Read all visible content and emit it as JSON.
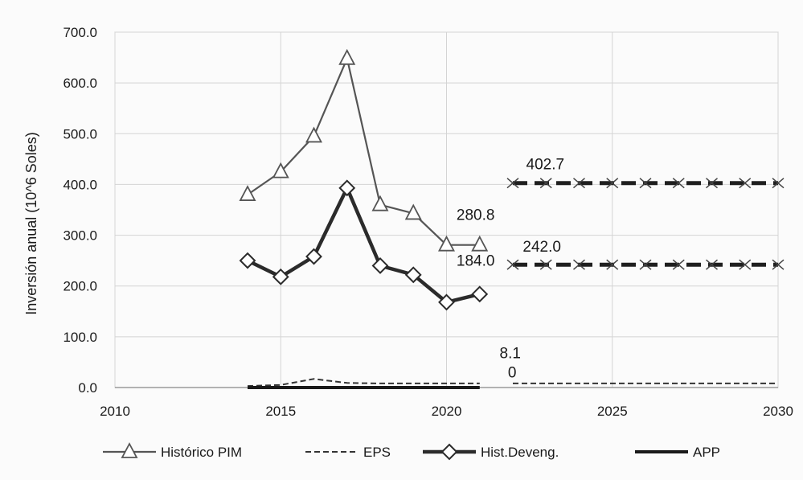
{
  "chart_data": {
    "type": "line",
    "title": "",
    "xlabel": "",
    "ylabel": "Inversión anual (10^6 Soles)",
    "xlim": [
      2010,
      2030
    ],
    "ylim": [
      0,
      700
    ],
    "x_ticks": [
      "2010",
      "2015",
      "2020",
      "2025",
      "2030"
    ],
    "y_ticks": [
      "0.0",
      "100.0",
      "200.0",
      "300.0",
      "400.0",
      "500.0",
      "600.0",
      "700.0"
    ],
    "grid": true,
    "legend_position": "bottom",
    "series": [
      {
        "name": "Histórico PIM",
        "style": "solid-triangle",
        "color": "#555555",
        "x": [
          2014,
          2015,
          2016,
          2017,
          2018,
          2019,
          2020,
          2021
        ],
        "y": [
          380,
          425,
          495,
          648,
          360,
          343,
          280.8,
          280.8
        ]
      },
      {
        "name": "EPS",
        "style": "dashed",
        "color": "#333333",
        "x": [
          2014,
          2015,
          2016,
          2017,
          2018,
          2019,
          2020,
          2021
        ],
        "y": [
          3,
          5,
          17,
          9,
          8,
          8,
          8,
          8
        ]
      },
      {
        "name": "Hist.Deveng.",
        "style": "thick-diamond",
        "color": "#2b2b2b",
        "x": [
          2014,
          2015,
          2016,
          2017,
          2018,
          2019,
          2020,
          2021
        ],
        "y": [
          250,
          218,
          258,
          393,
          240,
          222,
          168,
          184
        ]
      },
      {
        "name": "APP",
        "style": "thick-solid",
        "color": "#1a1a1a",
        "x": [
          2014,
          2015,
          2016,
          2017,
          2018,
          2019,
          2020,
          2021
        ],
        "y": [
          0,
          0,
          0,
          0,
          0,
          0,
          0,
          0
        ]
      },
      {
        "name": "",
        "style": "dashed-thick",
        "color": "#1f1f1f",
        "x": [
          2022,
          2023,
          2024,
          2025,
          2026,
          2027,
          2028,
          2029,
          2030
        ],
        "y": [
          402.7,
          402.7,
          402.7,
          402.7,
          402.7,
          402.7,
          402.7,
          402.7,
          402.7
        ]
      },
      {
        "name": "",
        "style": "dashed-thick",
        "color": "#1f1f1f",
        "x": [
          2022,
          2023,
          2024,
          2025,
          2026,
          2027,
          2028,
          2029,
          2030
        ],
        "y": [
          242,
          242,
          242,
          242,
          242,
          242,
          242,
          242,
          242
        ]
      },
      {
        "name": "",
        "style": "dashed",
        "color": "#333333",
        "x": [
          2022,
          2030
        ],
        "y": [
          8.1,
          8.1
        ]
      }
    ],
    "annotations": [
      {
        "text": "402.7",
        "x": 2022.4,
        "y": 430
      },
      {
        "text": "280.8",
        "x": 2020.3,
        "y": 330
      },
      {
        "text": "242.0",
        "x": 2022.3,
        "y": 268
      },
      {
        "text": "184.0",
        "x": 2020.3,
        "y": 240
      },
      {
        "text": "8.1",
        "x": 2021.6,
        "y": 58
      },
      {
        "text": "0",
        "x": 2021.85,
        "y": 20
      }
    ]
  }
}
